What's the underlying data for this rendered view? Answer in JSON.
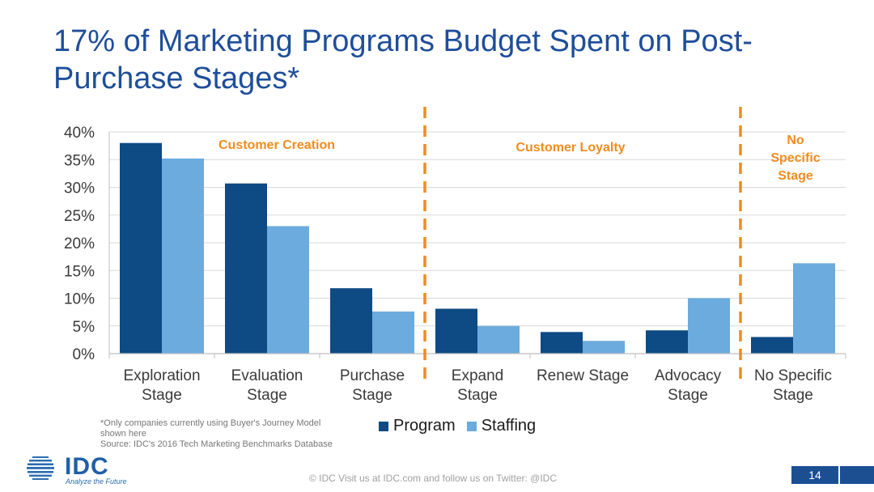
{
  "slide": {
    "title": "17% of Marketing Programs Budget Spent on Post-Purchase Stages*",
    "footnote": [
      "*Only companies currently using Buyer's Journey Model",
      "shown here",
      "Source: IDC's 2016 Tech Marketing Benchmarks Database"
    ],
    "footer": "© IDC   Visit us at IDC.com and follow us on Twitter: @IDC",
    "page_number": "14",
    "logo": {
      "text": "IDC",
      "tagline": "Analyze the Future"
    }
  },
  "colors": {
    "title": "#1f4e9a",
    "program": "#0e4a84",
    "staffing": "#6cabdd",
    "annotation": "#f08c1e"
  },
  "chart_data": {
    "type": "bar",
    "categories": [
      [
        "Exploration",
        "Stage"
      ],
      [
        "Evaluation",
        "Stage"
      ],
      [
        "Purchase",
        "Stage"
      ],
      [
        "Expand",
        "Stage"
      ],
      [
        "Renew Stage"
      ],
      [
        "Advocacy",
        "Stage"
      ],
      [
        "No Specific",
        "Stage"
      ]
    ],
    "series": [
      {
        "name": "Program",
        "values": [
          38,
          30.7,
          11.8,
          8.1,
          3.9,
          4.2,
          3.0
        ]
      },
      {
        "name": "Staffing",
        "values": [
          35.2,
          23.0,
          7.6,
          5.0,
          2.3,
          10.0,
          16.3
        ]
      }
    ],
    "ylim": [
      0,
      40
    ],
    "yticks": [
      0,
      5,
      10,
      15,
      20,
      25,
      30,
      35,
      40
    ],
    "ytick_labels": [
      "0%",
      "5%",
      "10%",
      "15%",
      "20%",
      "25%",
      "30%",
      "35%",
      "40%"
    ],
    "grid": true,
    "legend_position": "bottom",
    "group_labels": [
      {
        "lines": [
          "Customer Creation"
        ],
        "after_category": 1
      },
      {
        "lines": [
          "Customer Loyalty"
        ],
        "after_category": 4
      },
      {
        "lines": [
          "No",
          "Specific",
          "Stage"
        ],
        "after_category": 6
      }
    ],
    "dividers_after_category": [
      2,
      5
    ]
  }
}
